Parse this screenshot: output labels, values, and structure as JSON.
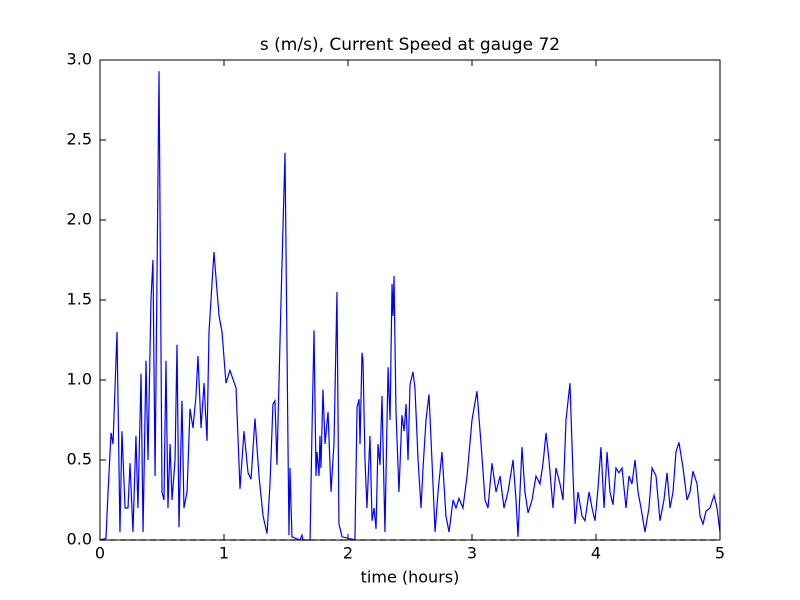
{
  "chart_data": {
    "type": "line",
    "title": "s (m/s), Current Speed at gauge 72",
    "xlabel": "time (hours)",
    "xlim": [
      0,
      5
    ],
    "ylim": [
      0,
      3
    ],
    "xticks": [
      0,
      1,
      2,
      3,
      4,
      5
    ],
    "yticks": [
      {
        "value": 0,
        "label": "0.0"
      },
      {
        "value": 0.5,
        "label": "0.5"
      },
      {
        "value": 1,
        "label": "1.0"
      },
      {
        "value": 1.5,
        "label": "1.5"
      },
      {
        "value": 2,
        "label": "2.0"
      },
      {
        "value": 2.5,
        "label": "2.5"
      },
      {
        "value": 3,
        "label": "3.0"
      }
    ],
    "series": [
      {
        "color": "#0000ff",
        "x": [
          0,
          0.048,
          0.065,
          0.089,
          0.105,
          0.137,
          0.161,
          0.177,
          0.202,
          0.226,
          0.242,
          0.266,
          0.29,
          0.306,
          0.331,
          0.347,
          0.371,
          0.387,
          0.411,
          0.427,
          0.444,
          0.476,
          0.5,
          0.516,
          0.532,
          0.548,
          0.565,
          0.581,
          0.605,
          0.621,
          0.637,
          0.661,
          0.677,
          0.702,
          0.726,
          0.75,
          0.774,
          0.79,
          0.815,
          0.839,
          0.863,
          0.879,
          0.919,
          0.96,
          0.984,
          1.016,
          1.048,
          1.097,
          1.129,
          1.161,
          1.194,
          1.218,
          1.25,
          1.282,
          1.315,
          1.347,
          1.371,
          1.395,
          1.411,
          1.427,
          1.46,
          1.492,
          1.516,
          1.524,
          1.532,
          1.548,
          1.613,
          1.629,
          1.637,
          1.694,
          1.71,
          1.726,
          1.742,
          1.75,
          1.766,
          1.774,
          1.782,
          1.798,
          1.815,
          1.839,
          1.863,
          1.887,
          1.911,
          1.927,
          1.952,
          2.056,
          2.073,
          2.089,
          2.097,
          2.113,
          2.121,
          2.137,
          2.153,
          2.177,
          2.194,
          2.21,
          2.226,
          2.242,
          2.258,
          2.274,
          2.298,
          2.323,
          2.339,
          2.355,
          2.363,
          2.371,
          2.387,
          2.411,
          2.435,
          2.452,
          2.468,
          2.484,
          2.5,
          2.524,
          2.54,
          2.565,
          2.589,
          2.605,
          2.629,
          2.653,
          2.677,
          2.702,
          2.726,
          2.758,
          2.79,
          2.815,
          2.847,
          2.871,
          2.895,
          2.927,
          2.96,
          3.0,
          3.04,
          3.073,
          3.105,
          3.129,
          3.161,
          3.194,
          3.226,
          3.258,
          3.29,
          3.331,
          3.355,
          3.371,
          3.403,
          3.427,
          3.452,
          3.484,
          3.516,
          3.548,
          3.573,
          3.597,
          3.621,
          3.653,
          3.677,
          3.71,
          3.734,
          3.758,
          3.79,
          3.815,
          3.831,
          3.855,
          3.887,
          3.911,
          3.944,
          3.968,
          3.992,
          4.016,
          4.04,
          4.065,
          4.089,
          4.113,
          4.137,
          4.161,
          4.185,
          4.21,
          4.242,
          4.266,
          4.29,
          4.315,
          4.339,
          4.363,
          4.395,
          4.427,
          4.452,
          4.484,
          4.516,
          4.548,
          4.573,
          4.597,
          4.621,
          4.645,
          4.669,
          4.702,
          4.734,
          4.758,
          4.782,
          4.815,
          4.839,
          4.863,
          4.887,
          4.919,
          4.952,
          4.976,
          5
        ],
        "values": [
          0,
          0.01,
          0.3,
          0.67,
          0.6,
          1.3,
          0.05,
          0.68,
          0.2,
          0.2,
          0.48,
          0.05,
          0.65,
          0.2,
          1.04,
          0.05,
          1.12,
          0.5,
          1.5,
          1.75,
          0.4,
          2.93,
          0.3,
          0.25,
          1.12,
          0.2,
          0.6,
          0.25,
          0.5,
          1.22,
          0.08,
          0.87,
          0.2,
          0.3,
          0.82,
          0.7,
          0.9,
          1.15,
          0.7,
          0.98,
          0.62,
          1.3,
          1.8,
          1.4,
          1.3,
          0.98,
          1.06,
          0.95,
          0.32,
          0.68,
          0.42,
          0.38,
          0.76,
          0.4,
          0.15,
          0.04,
          0.35,
          0.85,
          0.87,
          0.47,
          1.5,
          2.42,
          0.6,
          0.03,
          0.45,
          0.02,
          0,
          0.03,
          0,
          0,
          0.7,
          1.31,
          0.4,
          0.55,
          0.4,
          0.65,
          0.45,
          0.94,
          0.6,
          0.8,
          0.3,
          0.6,
          1.55,
          0.1,
          0.02,
          0,
          0.83,
          0.88,
          0.6,
          1.17,
          1.12,
          0.5,
          0.2,
          0.65,
          0.12,
          0.2,
          0.07,
          0.6,
          0.47,
          0.9,
          0.05,
          1.08,
          0.75,
          1.6,
          1.4,
          1.65,
          0.8,
          0.3,
          0.78,
          0.68,
          0.85,
          0.5,
          0.97,
          1.05,
          0.95,
          0.5,
          0.2,
          0.45,
          0.75,
          0.91,
          0.5,
          0.05,
          0.3,
          0.55,
          0.15,
          0.05,
          0.25,
          0.2,
          0.26,
          0.2,
          0.4,
          0.75,
          0.93,
          0.6,
          0.25,
          0.2,
          0.48,
          0.3,
          0.4,
          0.2,
          0.3,
          0.5,
          0.25,
          0.02,
          0.58,
          0.3,
          0.17,
          0.25,
          0.4,
          0.35,
          0.48,
          0.67,
          0.5,
          0.2,
          0.45,
          0.35,
          0.25,
          0.75,
          0.98,
          0.4,
          0.1,
          0.3,
          0.15,
          0.12,
          0.3,
          0.2,
          0.12,
          0.32,
          0.58,
          0.2,
          0.55,
          0.3,
          0.22,
          0.45,
          0.42,
          0.45,
          0.2,
          0.4,
          0.35,
          0.5,
          0.3,
          0.2,
          0.05,
          0.2,
          0.45,
          0.4,
          0.12,
          0.25,
          0.42,
          0.2,
          0.3,
          0.55,
          0.61,
          0.45,
          0.25,
          0.3,
          0.43,
          0.35,
          0.15,
          0.1,
          0.18,
          0.2,
          0.28,
          0.2,
          0.05
        ]
      },
      {
        "color": "#000000",
        "dashed": true,
        "x": [
          0,
          5
        ],
        "values": [
          0,
          0
        ]
      }
    ]
  }
}
